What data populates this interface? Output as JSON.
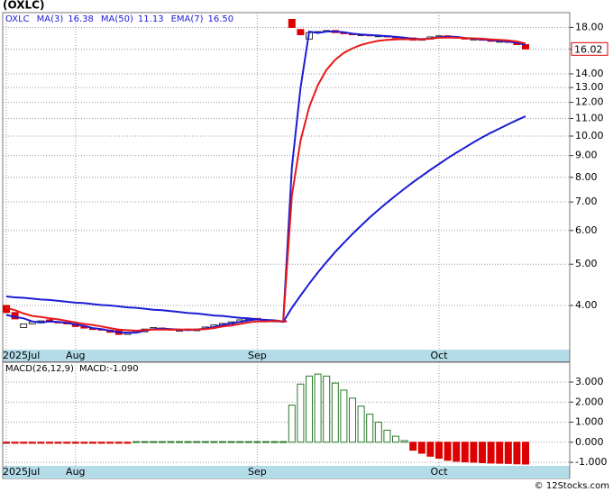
{
  "chart_data": [
    {
      "type": "candlestick",
      "title": "(OXLC)",
      "symbol": "OXLC",
      "categories": [
        "2025Jul",
        null,
        null,
        null,
        null,
        null,
        null,
        null,
        "Aug",
        null,
        null,
        null,
        null,
        null,
        null,
        null,
        null,
        null,
        null,
        null,
        null,
        null,
        null,
        null,
        null,
        null,
        null,
        null,
        null,
        "Sep",
        null,
        null,
        null,
        null,
        null,
        null,
        null,
        null,
        null,
        null,
        null,
        null,
        null,
        null,
        null,
        null,
        null,
        null,
        null,
        null,
        "Oct",
        null,
        null,
        null,
        null,
        null,
        null,
        null,
        null,
        null,
        null
      ],
      "open": [
        4.0,
        3.85,
        3.55,
        3.62,
        3.64,
        3.7,
        3.66,
        3.65,
        3.62,
        3.57,
        3.53,
        3.52,
        3.5,
        3.5,
        3.42,
        3.46,
        3.47,
        3.52,
        3.54,
        3.52,
        3.48,
        3.52,
        3.49,
        3.52,
        3.56,
        3.6,
        3.62,
        3.66,
        3.7,
        3.73,
        3.7,
        3.67,
        3.68,
        18.8,
        17.8,
        16.9,
        17.5,
        17.6,
        17.7,
        17.5,
        17.4,
        17.25,
        17.3,
        17.15,
        17.2,
        17.1,
        16.95,
        17.0,
        16.8,
        16.9,
        17.1,
        17.2,
        17.1,
        17.0,
        16.85,
        16.9,
        16.8,
        16.65,
        16.7,
        16.6,
        16.4
      ],
      "close": [
        3.85,
        3.72,
        3.62,
        3.66,
        3.68,
        3.66,
        3.64,
        3.62,
        3.57,
        3.54,
        3.52,
        3.5,
        3.46,
        3.42,
        3.46,
        3.48,
        3.52,
        3.55,
        3.52,
        3.5,
        3.5,
        3.5,
        3.52,
        3.56,
        3.6,
        3.63,
        3.66,
        3.7,
        3.72,
        3.7,
        3.68,
        3.68,
        3.66,
        18.0,
        17.3,
        17.5,
        17.6,
        17.7,
        17.5,
        17.4,
        17.3,
        17.3,
        17.2,
        17.2,
        17.1,
        17.0,
        17.0,
        16.8,
        16.9,
        17.1,
        17.2,
        17.1,
        17.0,
        16.9,
        16.9,
        16.8,
        16.7,
        16.7,
        16.6,
        16.4,
        16.02
      ],
      "up_color": "#ffffff",
      "up_edge": "#333333",
      "down_color": "#dd0000",
      "series": [
        {
          "name": "MA(3)",
          "color": "#1c1cd6",
          "last_label": "16.38",
          "values": [
            3.8,
            3.76,
            3.73,
            3.67,
            3.65,
            3.67,
            3.66,
            3.64,
            3.61,
            3.58,
            3.54,
            3.52,
            3.49,
            3.46,
            3.45,
            3.45,
            3.49,
            3.52,
            3.53,
            3.52,
            3.51,
            3.5,
            3.51,
            3.53,
            3.56,
            3.6,
            3.63,
            3.66,
            3.69,
            3.71,
            3.7,
            3.69,
            3.67,
            8.45,
            12.99,
            17.6,
            17.47,
            17.6,
            17.6,
            17.53,
            17.4,
            17.33,
            17.27,
            17.23,
            17.17,
            17.1,
            17.03,
            16.93,
            16.9,
            16.93,
            17.07,
            17.13,
            17.1,
            17.0,
            16.93,
            16.87,
            16.8,
            16.73,
            16.67,
            16.57,
            16.38
          ]
        },
        {
          "name": "MA(50)",
          "color": "#1c1cd6",
          "last_label": "11.13",
          "values": [
            4.2,
            4.18,
            4.17,
            4.15,
            4.13,
            4.12,
            4.1,
            4.08,
            4.06,
            4.05,
            4.03,
            4.01,
            4.0,
            3.98,
            3.96,
            3.95,
            3.93,
            3.91,
            3.9,
            3.88,
            3.86,
            3.84,
            3.83,
            3.81,
            3.79,
            3.78,
            3.76,
            3.74,
            3.73,
            3.71,
            3.69,
            3.68,
            3.66,
            3.95,
            4.22,
            4.5,
            4.78,
            5.06,
            5.34,
            5.61,
            5.89,
            6.16,
            6.44,
            6.71,
            6.98,
            7.25,
            7.52,
            7.79,
            8.06,
            8.33,
            8.6,
            8.87,
            9.14,
            9.4,
            9.67,
            9.93,
            10.18,
            10.42,
            10.66,
            10.9,
            11.13
          ]
        },
        {
          "name": "EMA(7)",
          "color": "#e81818",
          "last_label": "16.50",
          "values": [
            3.95,
            3.9,
            3.83,
            3.78,
            3.76,
            3.73,
            3.71,
            3.68,
            3.65,
            3.62,
            3.6,
            3.57,
            3.54,
            3.51,
            3.5,
            3.49,
            3.5,
            3.51,
            3.51,
            3.51,
            3.51,
            3.51,
            3.51,
            3.52,
            3.54,
            3.57,
            3.59,
            3.62,
            3.65,
            3.67,
            3.67,
            3.68,
            3.67,
            7.25,
            9.76,
            11.7,
            13.18,
            14.31,
            15.11,
            15.68,
            16.08,
            16.38,
            16.58,
            16.74,
            16.83,
            16.87,
            16.9,
            16.88,
            16.88,
            16.94,
            17.02,
            17.04,
            17.03,
            16.99,
            16.97,
            16.93,
            16.87,
            16.83,
            16.77,
            16.68,
            16.5
          ]
        }
      ],
      "log_scale": true,
      "grid": true,
      "ylim": [
        3.15,
        19.5
      ],
      "yticks": [
        {
          "value": 4,
          "label": "4.00"
        },
        {
          "value": 5,
          "label": "5.00"
        },
        {
          "value": 6,
          "label": "6.00"
        },
        {
          "value": 7,
          "label": "7.00"
        },
        {
          "value": 8,
          "label": "8.00"
        },
        {
          "value": 9,
          "label": "9.00"
        },
        {
          "value": 10,
          "label": "10.00"
        },
        {
          "value": 11,
          "label": "11.00"
        },
        {
          "value": 12,
          "label": "12.00"
        },
        {
          "value": 13,
          "label": "13.00"
        },
        {
          "value": 14,
          "label": "14.00"
        },
        {
          "value": 16,
          "label": "16.00"
        },
        {
          "value": 18,
          "label": "18.00"
        }
      ]
    },
    {
      "type": "bar",
      "title": "MACD(26,12,9)",
      "value_label": "MACD:-1.090",
      "values": [
        -0.05,
        -0.05,
        -0.05,
        -0.05,
        -0.05,
        -0.05,
        -0.05,
        -0.05,
        -0.05,
        -0.05,
        -0.05,
        -0.05,
        -0.05,
        -0.05,
        -0.05,
        0.03,
        0.03,
        0.03,
        0.03,
        0.03,
        0.03,
        0.03,
        0.03,
        0.03,
        0.03,
        0.03,
        0.03,
        0.03,
        0.03,
        0.03,
        0.03,
        0.03,
        0.03,
        1.85,
        2.9,
        3.3,
        3.4,
        3.3,
        2.95,
        2.6,
        2.2,
        1.8,
        1.4,
        1.0,
        0.6,
        0.3,
        0.08,
        -0.4,
        -0.55,
        -0.7,
        -0.8,
        -0.9,
        -0.95,
        -0.98,
        -1.0,
        -1.02,
        -1.04,
        -1.05,
        -1.06,
        -1.08,
        -1.09
      ],
      "positive_color": "#2a7a2a",
      "negative_color": "#dd0000",
      "grid": true,
      "ylim": [
        -1.18,
        3.99
      ],
      "yticks": [
        {
          "value": -1,
          "label": "-1.000"
        },
        {
          "value": 0,
          "label": "0.000"
        },
        {
          "value": 1,
          "label": "1.000"
        },
        {
          "value": 2,
          "label": "2.000"
        },
        {
          "value": 3,
          "label": "3.000"
        }
      ]
    }
  ],
  "watermark": "© 12Stocks.com"
}
